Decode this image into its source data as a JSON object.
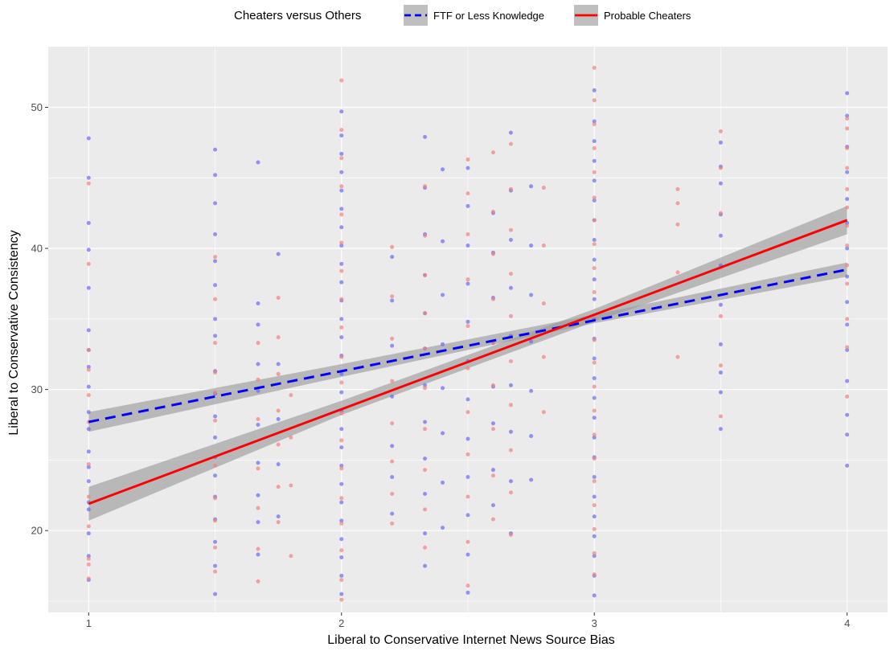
{
  "chart_data": {
    "type": "scatter",
    "xlabel": "Liberal to Conservative Internet News Source Bias",
    "ylabel": "Liberal to Conservative Consistency",
    "xlim": [
      0.84,
      4.16
    ],
    "ylim": [
      14.2,
      54.3
    ],
    "x_ticks": [
      1,
      2,
      3,
      4
    ],
    "x_tick_labels": [
      "1",
      "2",
      "3",
      "4"
    ],
    "y_ticks": [
      20,
      30,
      40,
      50
    ],
    "y_tick_labels": [
      "20",
      "30",
      "40",
      "50"
    ],
    "grid": true,
    "legend": {
      "title": "Cheaters versus Others",
      "position": "top"
    },
    "series": [
      {
        "name": "FTF or Less Knowledge",
        "color": "#0000ff",
        "point_color": "#6a6af5",
        "line_style": "dashed",
        "fit": {
          "x": [
            1,
            4
          ],
          "y": [
            27.7,
            38.5
          ]
        },
        "ci_band": {
          "x": [
            1,
            2,
            3,
            4
          ],
          "lower": [
            27.0,
            30.9,
            34.7,
            38.0
          ],
          "upper": [
            28.4,
            31.8,
            35.3,
            39.0
          ]
        },
        "points_by_x": [
          {
            "x": 1,
            "y": [
              16.5,
              18.2,
              19.8,
              21.5,
              22.0,
              23.5,
              24.5,
              25.6,
              27.2,
              28.4,
              30.2,
              31.6,
              32.8,
              34.2,
              37.2,
              39.9,
              41.8,
              45.0,
              47.8
            ]
          },
          {
            "x": 1.5,
            "y": [
              15.5,
              17.5,
              19.2,
              20.8,
              22.4,
              23.9,
              25.2,
              26.6,
              28.1,
              29.7,
              31.3,
              33.8,
              35.0,
              37.4,
              39.1,
              41.0,
              43.2,
              45.2,
              47.0
            ]
          },
          {
            "x": 1.67,
            "y": [
              18.3,
              20.6,
              22.5,
              24.8,
              27.5,
              29.9,
              31.8,
              34.6,
              36.1,
              46.1
            ]
          },
          {
            "x": 1.75,
            "y": [
              21.0,
              24.7,
              27.9,
              31.8,
              39.6
            ]
          },
          {
            "x": 2,
            "y": [
              15.5,
              16.8,
              18.1,
              19.4,
              20.7,
              22.0,
              23.3,
              24.6,
              25.9,
              27.2,
              28.5,
              29.8,
              31.1,
              32.4,
              33.7,
              35.0,
              36.3,
              37.6,
              38.9,
              40.2,
              41.5,
              42.8,
              44.1,
              45.4,
              46.7,
              48.0,
              49.7
            ]
          },
          {
            "x": 2.2,
            "y": [
              21.2,
              23.8,
              26.0,
              29.5,
              33.1,
              36.3,
              39.4
            ]
          },
          {
            "x": 2.33,
            "y": [
              17.5,
              19.8,
              22.6,
              25.1,
              27.7,
              30.3,
              32.9,
              35.4,
              38.1,
              41.0,
              44.3,
              47.9
            ]
          },
          {
            "x": 2.4,
            "y": [
              20.2,
              23.4,
              26.9,
              30.1,
              33.2,
              36.7,
              40.5,
              45.6
            ]
          },
          {
            "x": 2.5,
            "y": [
              15.6,
              18.3,
              21.1,
              23.8,
              26.5,
              29.3,
              32.0,
              34.8,
              37.5,
              40.2,
              43.0,
              45.7
            ]
          },
          {
            "x": 2.6,
            "y": [
              21.8,
              24.3,
              27.6,
              30.2,
              33.3,
              36.5,
              39.7,
              42.5
            ]
          },
          {
            "x": 2.67,
            "y": [
              19.8,
              23.5,
              27.0,
              30.3,
              33.8,
              37.2,
              40.6,
              44.1,
              48.2
            ]
          },
          {
            "x": 2.75,
            "y": [
              23.6,
              26.7,
              29.9,
              33.4,
              36.7,
              40.2,
              44.4
            ]
          },
          {
            "x": 3,
            "y": [
              15.4,
              16.8,
              18.2,
              19.6,
              21.0,
              22.4,
              23.8,
              25.2,
              26.6,
              28.0,
              29.4,
              30.8,
              32.2,
              33.6,
              35.0,
              36.4,
              37.8,
              39.2,
              40.6,
              42.0,
              43.4,
              44.8,
              46.2,
              47.6,
              49.0,
              51.2
            ]
          },
          {
            "x": 3.5,
            "y": [
              27.2,
              29.8,
              31.2,
              33.2,
              36.0,
              38.8,
              40.9,
              42.4,
              44.6,
              45.8,
              47.5
            ]
          },
          {
            "x": 4,
            "y": [
              24.6,
              26.8,
              28.2,
              30.6,
              32.8,
              34.6,
              36.2,
              38.0,
              40.0,
              41.8,
              43.5,
              45.4,
              47.2,
              49.4,
              51.0
            ]
          }
        ]
      },
      {
        "name": "Probable Cheaters",
        "color": "#ff0000",
        "point_color": "#f57f7f",
        "line_style": "solid",
        "fit": {
          "x": [
            1,
            4
          ],
          "y": [
            21.9,
            42.0
          ]
        },
        "ci_band": {
          "x": [
            1,
            2,
            3,
            4
          ],
          "lower": [
            20.7,
            28.2,
            34.8,
            41.0
          ],
          "upper": [
            23.1,
            29.2,
            35.7,
            43.0
          ]
        },
        "points_by_x": [
          {
            "x": 1,
            "y": [
              16.6,
              17.6,
              18.0,
              20.3,
              22.4,
              24.7,
              27.7,
              29.6,
              31.4,
              32.8,
              38.9,
              44.6
            ]
          },
          {
            "x": 1.5,
            "y": [
              17.1,
              18.8,
              20.7,
              22.3,
              24.6,
              27.8,
              29.8,
              31.2,
              33.3,
              36.4,
              39.4
            ]
          },
          {
            "x": 1.67,
            "y": [
              16.4,
              18.7,
              21.6,
              24.4,
              27.9,
              30.7,
              33.3
            ]
          },
          {
            "x": 1.75,
            "y": [
              20.6,
              23.1,
              26.1,
              28.5,
              31.1,
              33.7,
              36.5
            ]
          },
          {
            "x": 1.8,
            "y": [
              18.2,
              23.2,
              26.6,
              29.6
            ]
          },
          {
            "x": 2,
            "y": [
              15.1,
              16.5,
              18.6,
              20.5,
              22.3,
              24.4,
              26.4,
              28.3,
              30.5,
              32.3,
              34.4,
              36.4,
              38.4,
              40.4,
              42.4,
              44.4,
              46.4,
              48.4,
              51.9
            ]
          },
          {
            "x": 2.2,
            "y": [
              20.5,
              22.6,
              24.9,
              27.6,
              30.6,
              33.6,
              36.6,
              40.1
            ]
          },
          {
            "x": 2.33,
            "y": [
              18.8,
              21.5,
              24.3,
              27.2,
              30.1,
              32.9,
              35.4,
              38.1,
              40.9,
              44.4
            ]
          },
          {
            "x": 2.5,
            "y": [
              16.1,
              19.2,
              22.4,
              25.4,
              28.4,
              31.5,
              34.5,
              37.8,
              41.0,
              43.9,
              46.3
            ]
          },
          {
            "x": 2.6,
            "y": [
              20.8,
              23.9,
              27.2,
              30.3,
              33.3,
              36.4,
              39.6,
              42.6,
              46.8
            ]
          },
          {
            "x": 2.67,
            "y": [
              19.7,
              22.7,
              25.7,
              28.9,
              32.0,
              35.2,
              38.2,
              41.3,
              44.2,
              47.4
            ]
          },
          {
            "x": 2.8,
            "y": [
              28.4,
              32.3,
              36.1,
              40.2,
              44.3
            ]
          },
          {
            "x": 3,
            "y": [
              16.9,
              18.4,
              20.1,
              21.8,
              23.5,
              25.1,
              26.8,
              28.5,
              30.2,
              31.9,
              33.5,
              35.2,
              36.9,
              38.6,
              40.3,
              42.0,
              43.6,
              45.4,
              47.1,
              48.8,
              50.5,
              52.8
            ]
          },
          {
            "x": 3.33,
            "y": [
              32.3,
              38.3,
              41.7,
              43.2,
              44.2
            ]
          },
          {
            "x": 3.5,
            "y": [
              28.1,
              31.7,
              35.2,
              38.6,
              42.5,
              45.7,
              48.3
            ]
          },
          {
            "x": 4,
            "y": [
              29.5,
              33.0,
              35.0,
              37.5,
              38.8,
              40.2,
              41.6,
              42.9,
              44.2,
              45.7,
              47.1,
              48.5,
              49.2
            ]
          }
        ]
      }
    ]
  }
}
